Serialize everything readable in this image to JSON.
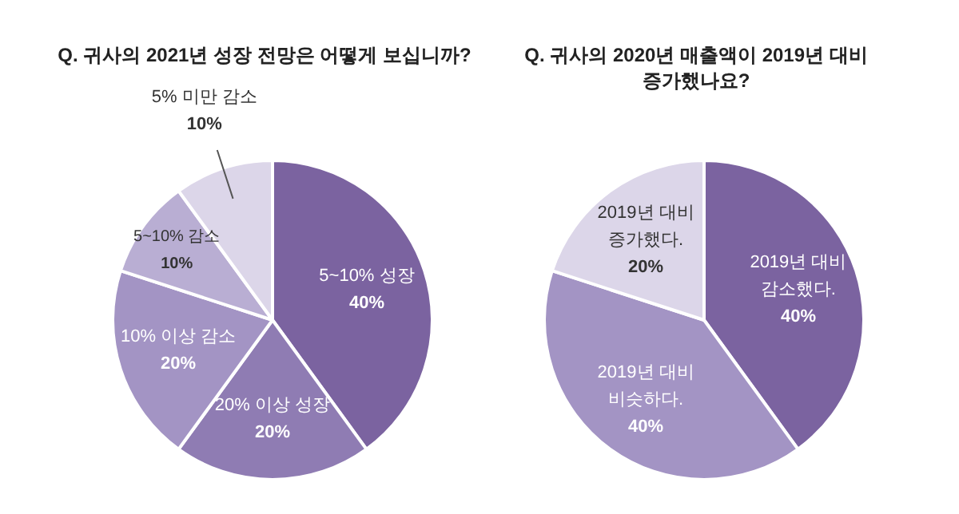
{
  "chart_data": [
    {
      "type": "pie",
      "title": "Q. 귀사의 2021년 성장 전망은 어떻게 보십니까?",
      "categories": [
        "5~10% 성장",
        "20% 이상 성장",
        "10% 이상 감소",
        "5~10% 감소",
        "5% 미만 감소"
      ],
      "values": [
        40,
        20,
        20,
        10,
        10
      ],
      "value_labels": [
        "40%",
        "20%",
        "20%",
        "10%",
        "10%"
      ],
      "colors": [
        "#7b63a0",
        "#8f7cb3",
        "#a394c4",
        "#b9aed3",
        "#dcd6e9"
      ]
    },
    {
      "type": "pie",
      "title": "Q. 귀사의 2020년 매출액이 2019년 대비\n증가했나요?",
      "categories": [
        "2019년 대비\n감소했다.",
        "2019년 대비\n비슷하다.",
        "2019년 대비\n증가했다."
      ],
      "values": [
        40,
        40,
        20
      ],
      "value_labels": [
        "40%",
        "40%",
        "20%"
      ],
      "colors": [
        "#7b63a0",
        "#a394c4",
        "#dcd6e9"
      ]
    }
  ]
}
